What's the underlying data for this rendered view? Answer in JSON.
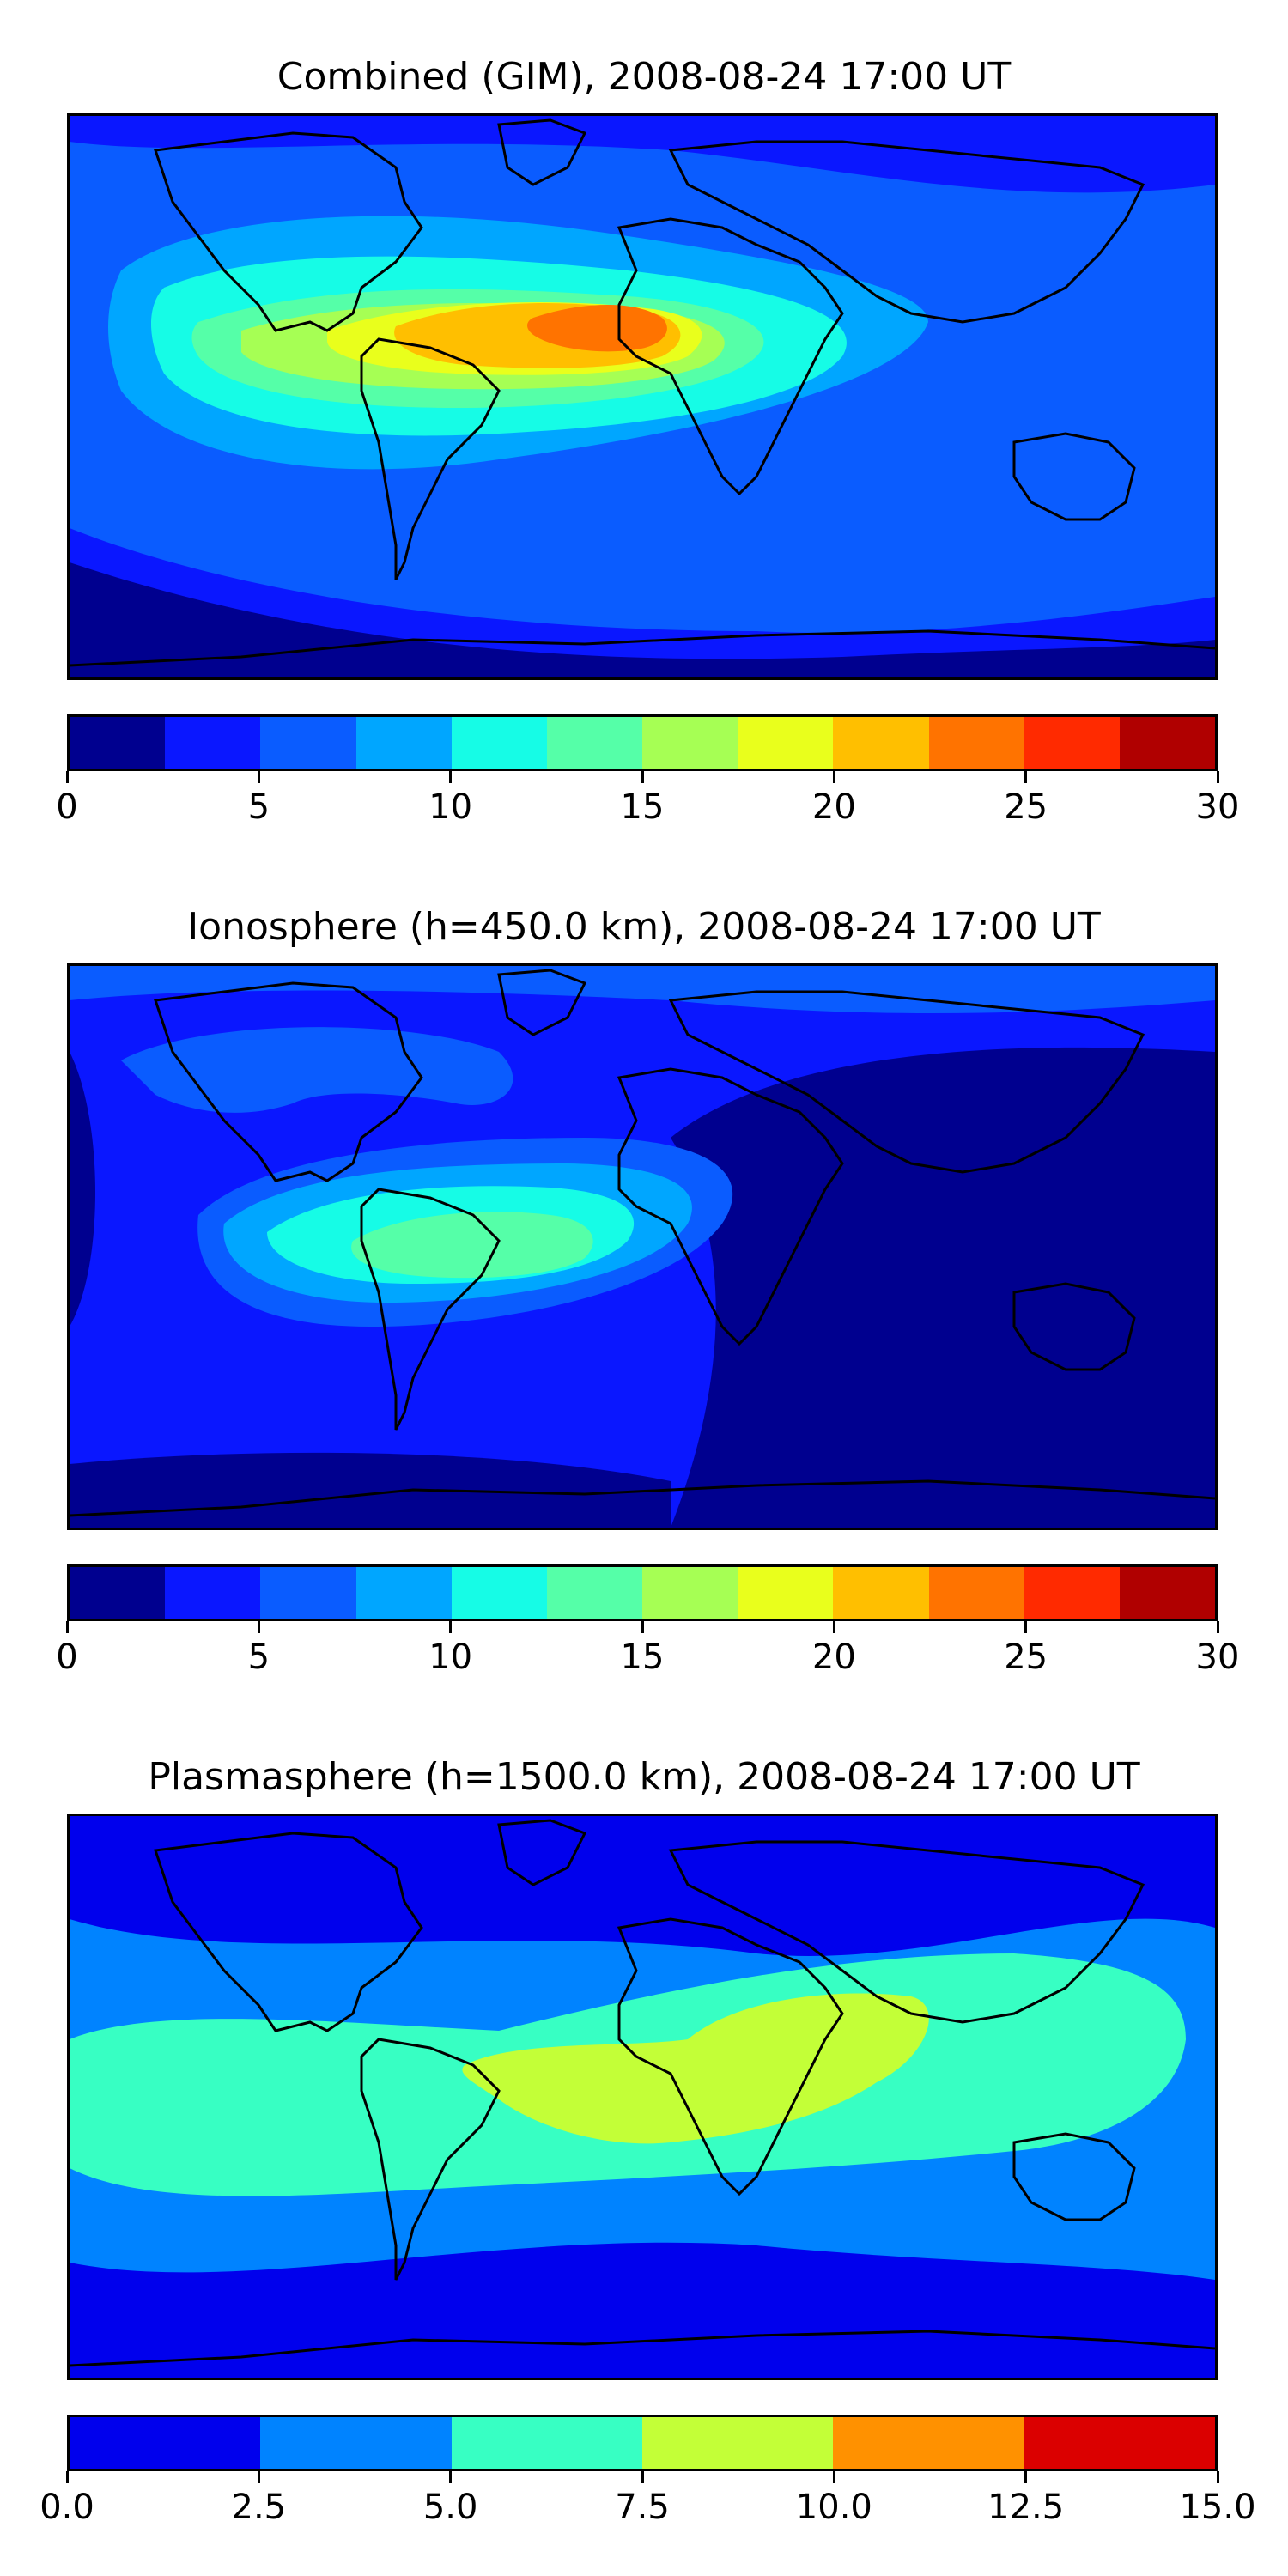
{
  "chart_data": [
    {
      "type": "heatmap",
      "title": "Combined (GIM), 2008-08-24 17:00 UT",
      "projection": "world map (plate carree)",
      "colorbar": {
        "ticks": [
          "0",
          "5",
          "10",
          "15",
          "20",
          "25",
          "30"
        ],
        "range": [
          0,
          30
        ],
        "levels": [
          0,
          2.5,
          5,
          7.5,
          10,
          12.5,
          15,
          17.5,
          20,
          22.5,
          25,
          27.5,
          30
        ],
        "colors": [
          "#00008f",
          "#0a17ff",
          "#0a5cff",
          "#00a6ff",
          "#16fce6",
          "#55ffa8",
          "#a6ff54",
          "#e9ff1c",
          "#ffbf00",
          "#ff7300",
          "#ff2a00",
          "#b00000"
        ]
      },
      "peak_value_approx": 22.5,
      "peak_region": "equatorial South America / Atlantic"
    },
    {
      "type": "heatmap",
      "title": "Ionosphere  (h=450.0 km), 2008-08-24 17:00 UT",
      "projection": "world map (plate carree)",
      "colorbar": {
        "ticks": [
          "0",
          "5",
          "10",
          "15",
          "20",
          "25",
          "30"
        ],
        "range": [
          0,
          30
        ],
        "levels": [
          0,
          2.5,
          5,
          7.5,
          10,
          12.5,
          15,
          17.5,
          20,
          22.5,
          25,
          27.5,
          30
        ],
        "colors": [
          "#00008f",
          "#0a17ff",
          "#0a5cff",
          "#00a6ff",
          "#16fce6",
          "#55ffa8",
          "#a6ff54",
          "#e9ff1c",
          "#ffbf00",
          "#ff7300",
          "#ff2a00",
          "#b00000"
        ]
      },
      "peak_value_approx": 15,
      "peak_region": "South America"
    },
    {
      "type": "heatmap",
      "title": "Plasmasphere (h=1500.0 km), 2008-08-24 17:00 UT",
      "projection": "world map (plate carree)",
      "colorbar": {
        "ticks": [
          "0.0",
          "2.5",
          "5.0",
          "7.5",
          "10.0",
          "12.5",
          "15.0"
        ],
        "range": [
          0,
          15
        ],
        "levels": [
          0,
          2.5,
          5,
          7.5,
          10,
          12.5,
          15
        ],
        "colors": [
          "#0000ed",
          "#0083ff",
          "#37ffc3",
          "#c3ff37",
          "#ff9100",
          "#db0000"
        ]
      },
      "peak_value_approx": 10,
      "peak_region": "Africa / Atlantic low latitudes"
    }
  ]
}
